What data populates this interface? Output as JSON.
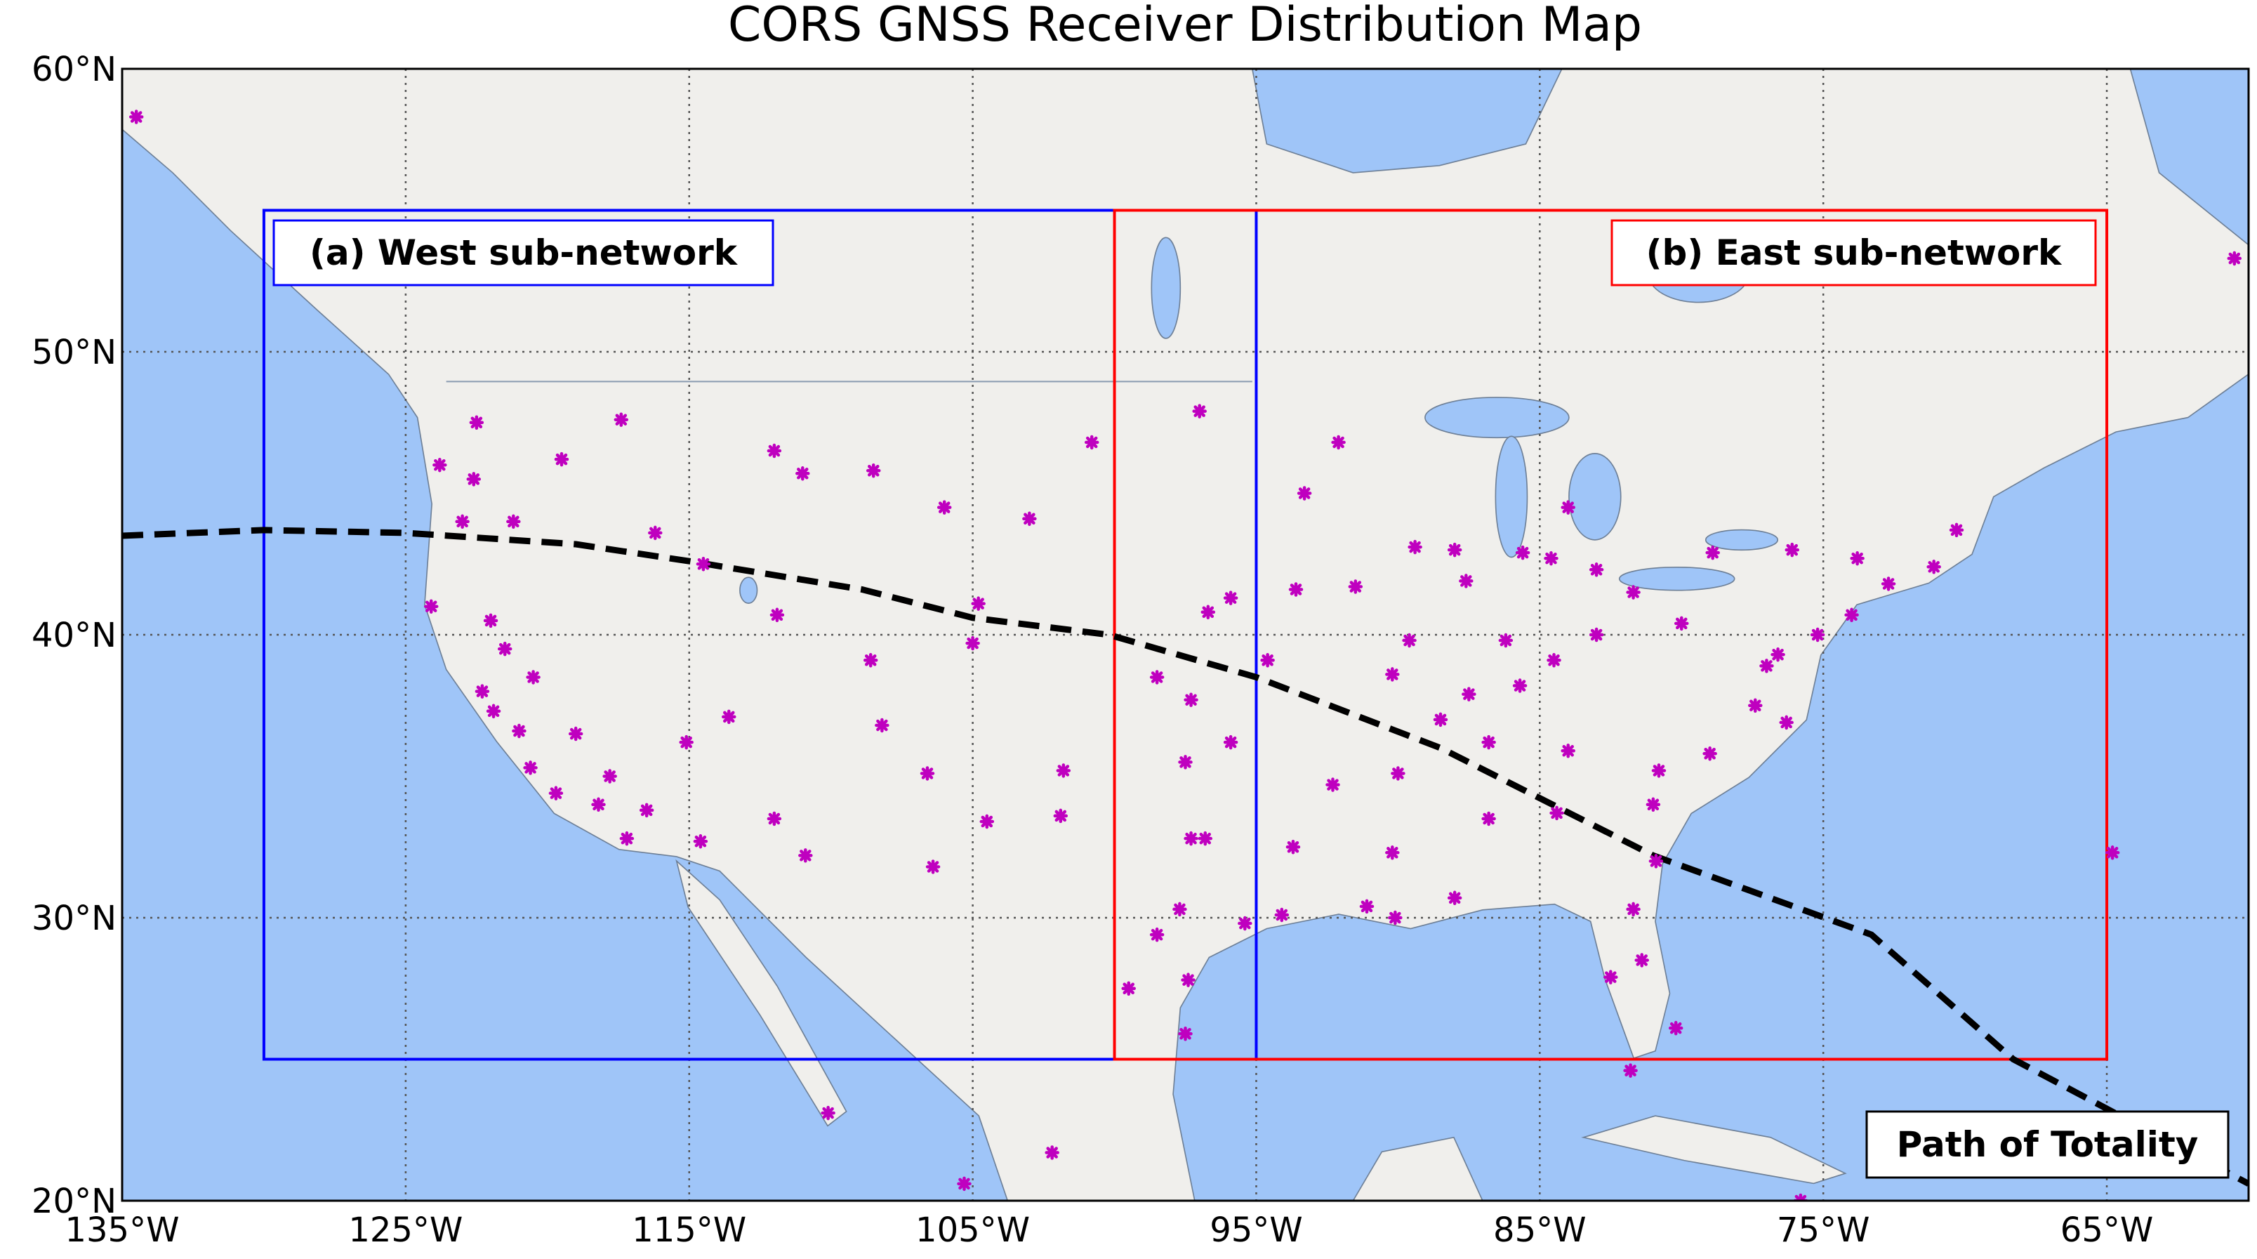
{
  "chart_data": {
    "type": "scatter",
    "title": "CORS GNSS Receiver Distribution Map",
    "xlim": [
      -135,
      -60
    ],
    "ylim": [
      20,
      60
    ],
    "xticks": [
      {
        "value": -135,
        "label": "135°W"
      },
      {
        "value": -125,
        "label": "125°W"
      },
      {
        "value": -115,
        "label": "115°W"
      },
      {
        "value": -105,
        "label": "105°W"
      },
      {
        "value": -95,
        "label": "95°W"
      },
      {
        "value": -85,
        "label": "85°W"
      },
      {
        "value": -75,
        "label": "75°W"
      },
      {
        "value": -65,
        "label": "65°W"
      }
    ],
    "yticks": [
      {
        "value": 20,
        "label": "20°N"
      },
      {
        "value": 30,
        "label": "30°N"
      },
      {
        "value": 40,
        "label": "40°N"
      },
      {
        "value": 50,
        "label": "50°N"
      },
      {
        "value": 60,
        "label": "60°N"
      }
    ],
    "grid": true,
    "series": [
      {
        "color": "#bf00bf",
        "x": [
          -124.1,
          -123.8,
          -122.5,
          -122.3,
          -121.9,
          -121,
          -120.6,
          -119.7,
          -118.2,
          -117.2,
          -116.5,
          -117.8,
          -119,
          -120.5,
          -121.5,
          -122,
          -123,
          -122.6,
          -121.2,
          -119.5,
          -117.4,
          -116.2,
          -114.5,
          -112,
          -111,
          -108.5,
          -106,
          -104.8,
          -111.9,
          -113.6,
          -115.1,
          -112,
          -110.9,
          -114.6,
          -106.6,
          -106.4,
          -104.5,
          -108.2,
          -105,
          -108.6,
          -103,
          -100.8,
          -97,
          -96.7,
          -98.5,
          -97.3,
          -94.6,
          -97.5,
          -95.9,
          -101.8,
          -101.9,
          -97.3,
          -96.8,
          -97.7,
          -98.5,
          -95.4,
          -94.1,
          -97.4,
          -97.5,
          -99.5,
          -93.7,
          -92.3,
          -90.2,
          -90.1,
          -91.1,
          -88,
          -86.8,
          -84.4,
          -81.7,
          -82.5,
          -81.4,
          -80.2,
          -81.8,
          -80.9,
          -81,
          -79,
          -80.8,
          -77.4,
          -76.3,
          -77,
          -76.6,
          -75.2,
          -74,
          -73.8,
          -71.1,
          -70.3,
          -72.7,
          -76.1,
          -78.9,
          -80,
          -81.7,
          -83,
          -84.5,
          -86.2,
          -87.6,
          -88,
          -89.4,
          -90.2,
          -85.7,
          -86.8,
          -84,
          -83,
          -84.6,
          -85.6,
          -84,
          -93.3,
          -92.1,
          -93.6,
          -91.5,
          -90,
          -88.5,
          -87.5,
          -95.9,
          -89.6,
          -64.8,
          -60.5,
          -134.5,
          -105.3,
          -102.2,
          -110.1,
          -75.8
        ],
        "values": [
          41,
          46,
          47.5,
          38,
          37.3,
          36.6,
          35.3,
          34.4,
          34,
          32.8,
          33.8,
          35,
          36.5,
          38.5,
          39.5,
          40.5,
          44,
          45.5,
          44,
          46.2,
          47.6,
          43.6,
          42.5,
          46.5,
          45.7,
          45.8,
          44.5,
          41.1,
          40.7,
          37.1,
          36.2,
          33.5,
          32.2,
          32.7,
          35.1,
          31.8,
          33.4,
          36.8,
          39.7,
          39.1,
          44.1,
          46.8,
          47.9,
          40.8,
          38.5,
          37.7,
          39.1,
          35.5,
          36.2,
          35.2,
          33.6,
          32.8,
          32.8,
          30.3,
          29.4,
          29.8,
          30.1,
          27.8,
          25.9,
          27.5,
          32.5,
          34.7,
          32.3,
          30,
          30.4,
          30.7,
          33.5,
          33.7,
          30.3,
          27.9,
          28.5,
          26.1,
          24.6,
          32,
          34,
          35.8,
          35.2,
          37.5,
          36.9,
          38.9,
          39.3,
          40,
          40.7,
          42.7,
          42.4,
          43.7,
          41.8,
          43,
          42.9,
          40.4,
          41.5,
          40,
          39.1,
          39.8,
          41.9,
          43,
          43.1,
          38.6,
          38.2,
          36.2,
          35.9,
          42.3,
          42.7,
          42.9,
          44.5,
          45,
          46.8,
          41.6,
          41.7,
          35.1,
          37,
          37.9,
          41.3,
          39.8,
          32.3,
          53.3,
          58.3,
          20.6,
          21.7,
          23.1,
          20
        ]
      }
    ],
    "regions": [
      {
        "label": "(a) West sub-network",
        "color": "#0000ff",
        "lon": [
          -130,
          -95
        ],
        "lat": [
          25,
          55
        ]
      },
      {
        "label": "(b) East sub-network",
        "color": "#ff0000",
        "lon": [
          -100,
          -65
        ],
        "lat": [
          25,
          55
        ]
      }
    ],
    "path": {
      "label": "Path of Totality",
      "x": [
        -135,
        -130,
        -125,
        -119,
        -115,
        -108.9,
        -105,
        -100.2,
        -95,
        -88.5,
        -81,
        -73.3,
        -68.3,
        -60
      ],
      "values": [
        43.5,
        43.7,
        43.6,
        43.2,
        42.6,
        41.6,
        40.6,
        40,
        38.5,
        36,
        32.2,
        29.4,
        25,
        20.6
      ]
    }
  }
}
